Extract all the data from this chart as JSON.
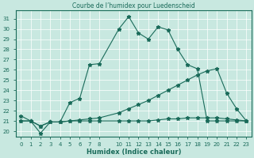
{
  "title": "Courbe de l’humidex pour Luedenscheid",
  "xlabel": "Humidex (Indice chaleur)",
  "bg_color": "#c8e8e0",
  "line_color": "#1a6b5a",
  "grid_color": "#ffffff",
  "ylim": [
    19.5,
    31.8
  ],
  "xlim": [
    -0.5,
    23.5
  ],
  "yticks": [
    20,
    21,
    22,
    23,
    24,
    25,
    26,
    27,
    28,
    29,
    30,
    31
  ],
  "xticks": [
    0,
    1,
    2,
    3,
    4,
    5,
    6,
    7,
    8,
    10,
    11,
    12,
    13,
    14,
    15,
    16,
    17,
    18,
    19,
    20,
    21,
    22,
    23
  ],
  "xtick_labels": [
    "0",
    "1",
    "2",
    "3",
    "4",
    "5",
    "6",
    "7",
    "8",
    "10",
    "11",
    "12",
    "13",
    "14",
    "15",
    "16",
    "17",
    "18",
    "19",
    "20",
    "21",
    "22",
    "23"
  ],
  "series1_x": [
    0,
    1,
    2,
    3,
    4,
    5,
    6,
    7,
    8,
    10,
    11,
    12,
    13,
    14,
    15,
    16,
    17,
    18,
    19,
    20,
    21,
    22,
    23
  ],
  "series1_y": [
    21.5,
    21.0,
    19.8,
    20.9,
    20.9,
    22.8,
    23.2,
    26.5,
    26.6,
    30.0,
    31.2,
    29.6,
    29.0,
    30.2,
    29.9,
    28.0,
    26.5,
    26.1,
    21.0,
    21.0,
    21.0,
    21.0,
    21.0
  ],
  "series2_x": [
    0,
    1,
    2,
    3,
    4,
    5,
    6,
    7,
    8,
    10,
    11,
    12,
    13,
    14,
    15,
    16,
    17,
    18,
    19,
    20,
    21,
    22,
    23
  ],
  "series2_y": [
    21.0,
    21.0,
    20.5,
    20.9,
    20.9,
    21.0,
    21.1,
    21.2,
    21.3,
    21.8,
    22.2,
    22.6,
    23.0,
    23.5,
    24.0,
    24.5,
    25.0,
    25.5,
    25.9,
    26.1,
    23.7,
    22.2,
    21.0
  ],
  "series3_x": [
    0,
    1,
    2,
    3,
    4,
    5,
    6,
    7,
    8,
    10,
    11,
    12,
    13,
    14,
    15,
    16,
    17,
    18,
    19,
    20,
    21,
    22,
    23
  ],
  "series3_y": [
    21.0,
    21.0,
    20.5,
    20.9,
    20.9,
    21.0,
    21.0,
    21.0,
    21.0,
    21.0,
    21.0,
    21.0,
    21.0,
    21.1,
    21.2,
    21.2,
    21.3,
    21.3,
    21.3,
    21.3,
    21.2,
    21.1,
    21.0
  ]
}
